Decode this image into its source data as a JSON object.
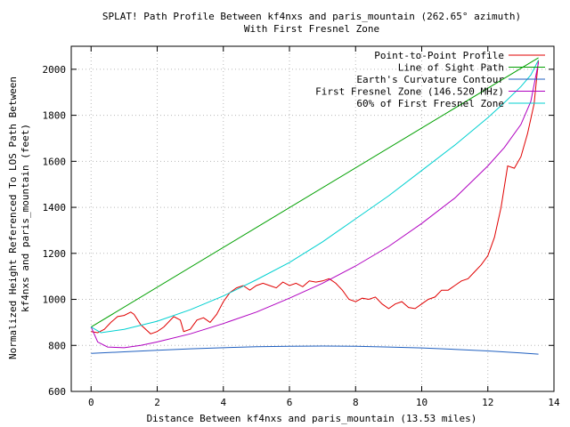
{
  "chart_data": {
    "type": "line",
    "title": "SPLAT! Path Profile Between kf4nxs and paris_mountain (262.65° azimuth)",
    "subtitle": "With First Fresnel Zone",
    "xlabel": "Distance Between kf4nxs and paris_mountain (13.53 miles)",
    "ylabel_line1": "Normalized Height Referenced To LOS Path Between",
    "ylabel_line2": "kf4nxs and paris_mountain (feet)",
    "xlim": [
      -0.6,
      14
    ],
    "ylim": [
      600,
      2100
    ],
    "x_ticks": [
      0,
      2,
      4,
      6,
      8,
      10,
      12,
      14
    ],
    "y_ticks": [
      600,
      800,
      1000,
      1200,
      1400,
      1600,
      1800,
      2000
    ],
    "grid": true,
    "legend_position": "top-right",
    "series": [
      {
        "name": "Point-to-Point Profile",
        "color": "#e00000",
        "x": [
          0,
          0.2,
          0.4,
          0.6,
          0.8,
          1.0,
          1.2,
          1.3,
          1.5,
          1.8,
          2.0,
          2.2,
          2.5,
          2.7,
          2.8,
          3.0,
          3.2,
          3.4,
          3.6,
          3.8,
          4.0,
          4.2,
          4.4,
          4.6,
          4.8,
          5.0,
          5.2,
          5.4,
          5.6,
          5.8,
          6.0,
          6.2,
          6.4,
          6.6,
          6.8,
          7.0,
          7.2,
          7.4,
          7.6,
          7.8,
          8.0,
          8.2,
          8.4,
          8.6,
          8.8,
          9.0,
          9.2,
          9.4,
          9.6,
          9.8,
          10.0,
          10.2,
          10.4,
          10.6,
          10.8,
          11.0,
          11.2,
          11.4,
          11.6,
          11.8,
          12.0,
          12.2,
          12.4,
          12.6,
          12.8,
          13.0,
          13.2,
          13.4,
          13.53
        ],
        "y": [
          860,
          855,
          870,
          900,
          925,
          930,
          945,
          935,
          890,
          850,
          860,
          880,
          925,
          910,
          860,
          870,
          910,
          920,
          900,
          935,
          990,
          1030,
          1050,
          1060,
          1040,
          1060,
          1070,
          1060,
          1050,
          1075,
          1060,
          1070,
          1055,
          1080,
          1075,
          1080,
          1090,
          1070,
          1040,
          1000,
          990,
          1005,
          1000,
          1010,
          980,
          960,
          980,
          990,
          965,
          960,
          980,
          1000,
          1010,
          1040,
          1040,
          1060,
          1080,
          1090,
          1120,
          1150,
          1190,
          1270,
          1400,
          1580,
          1570,
          1620,
          1720,
          1850,
          2040
        ]
      },
      {
        "name": "Line of Sight Path",
        "color": "#00a000",
        "x": [
          0,
          13.53
        ],
        "y": [
          880,
          2050
        ]
      },
      {
        "name": "Earth's Curvature Contour",
        "color": "#2060c0",
        "x": [
          0,
          1,
          2,
          3,
          4,
          5,
          6,
          7,
          8,
          9,
          10,
          11,
          12,
          13,
          13.53
        ],
        "y": [
          765,
          772,
          779,
          785,
          790,
          794,
          796,
          797,
          796,
          793,
          789,
          783,
          776,
          767,
          762
        ]
      },
      {
        "name": "First Fresnel Zone (146.520 MHz)",
        "color": "#b000c0",
        "x": [
          0,
          0.2,
          0.5,
          1,
          1.5,
          2,
          3,
          4,
          5,
          6,
          7,
          8,
          9,
          10,
          11,
          12,
          12.5,
          13,
          13.3,
          13.53
        ],
        "y": [
          880,
          815,
          793,
          790,
          800,
          815,
          850,
          895,
          945,
          1005,
          1070,
          1145,
          1230,
          1330,
          1440,
          1580,
          1660,
          1760,
          1860,
          2030
        ]
      },
      {
        "name": "60% of First Fresnel Zone",
        "color": "#00d0d0",
        "x": [
          0,
          0.3,
          1,
          2,
          3,
          4,
          5,
          6,
          7,
          8,
          9,
          10,
          11,
          12,
          12.5,
          13,
          13.3,
          13.53
        ],
        "y": [
          880,
          855,
          870,
          905,
          955,
          1015,
          1085,
          1160,
          1250,
          1350,
          1450,
          1560,
          1670,
          1790,
          1855,
          1925,
          1975,
          2040
        ]
      }
    ]
  }
}
